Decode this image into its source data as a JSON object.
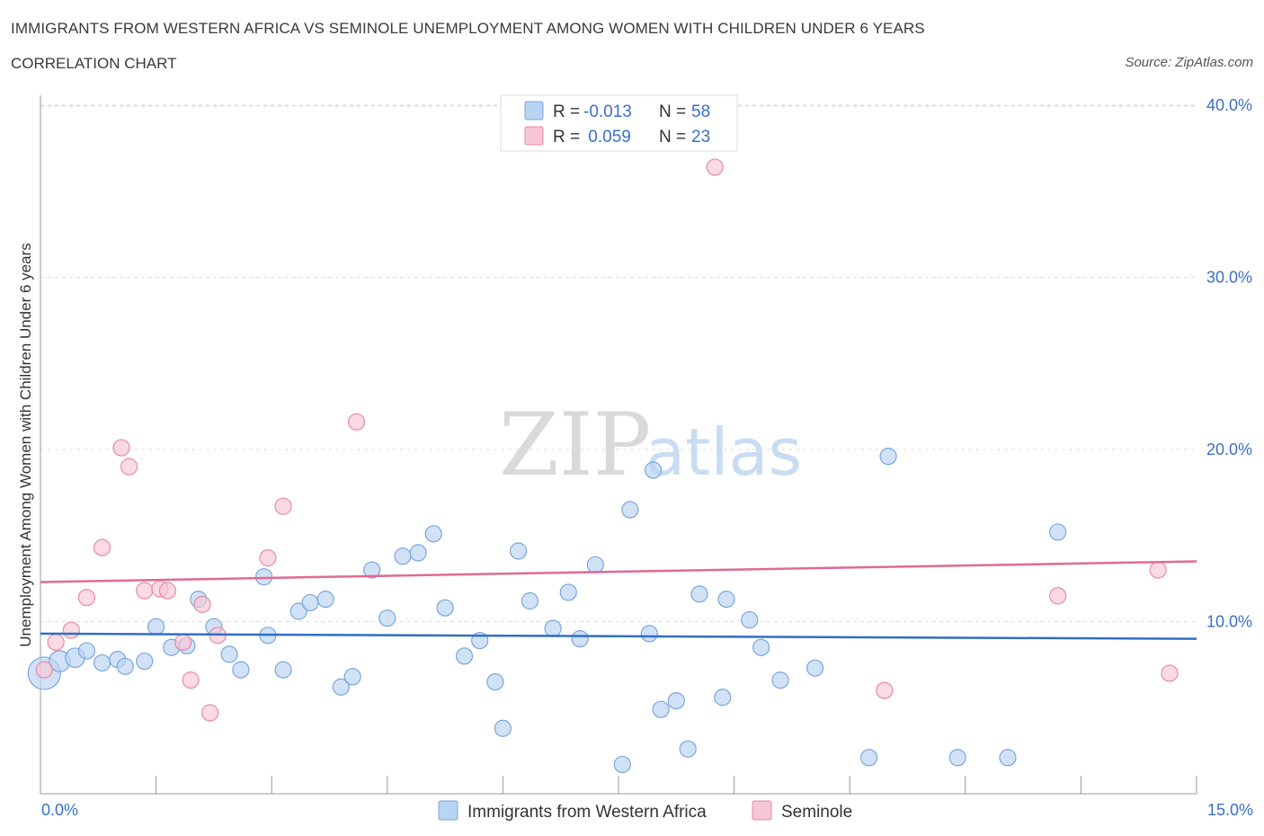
{
  "header": {
    "title": "IMMIGRANTS FROM WESTERN AFRICA VS SEMINOLE UNEMPLOYMENT AMONG WOMEN WITH CHILDREN UNDER 6 YEARS",
    "subtitle": "CORRELATION CHART",
    "source": "Source: ZipAtlas.com"
  },
  "colors": {
    "blue_fill": "#b9d3f2",
    "blue_stroke": "#7aa6dd",
    "blue_line": "#2f6fc4",
    "pink_fill": "#f7c6d4",
    "pink_stroke": "#e88aa8",
    "pink_line": "#e06a92",
    "accent_text": "#3a6fc9"
  },
  "legend": {
    "rows": [
      {
        "r_label": "R = ",
        "r_value": "-0.013",
        "n_label": "N = ",
        "n_value": "58"
      },
      {
        "r_label": "R = ",
        "r_value": " 0.059",
        "n_label": "N = ",
        "n_value": "23"
      }
    ]
  },
  "watermark": {
    "zip": "ZIP",
    "atlas": "atlas"
  },
  "chart_data": {
    "type": "scatter",
    "title": "IMMIGRANTS FROM WESTERN AFRICA VS SEMINOLE UNEMPLOYMENT AMONG WOMEN WITH CHILDREN UNDER 6 YEARS",
    "xlabel": "",
    "ylabel": "Unemployment Among Women with Children Under 6 years",
    "xlim": [
      0,
      15
    ],
    "ylim": [
      0,
      40
    ],
    "x_tick_labels": [
      "0.0%",
      "15.0%"
    ],
    "y_tick_labels": [
      "10.0%",
      "20.0%",
      "30.0%",
      "40.0%"
    ],
    "y_ticks": [
      10,
      20,
      30,
      40
    ],
    "series": [
      {
        "name": "Immigrants from Western Africa",
        "color": "blue",
        "trend": {
          "start": 9.3,
          "end": 9.0
        },
        "points": [
          [
            0.05,
            7.0,
            2.0
          ],
          [
            0.25,
            7.7,
            1.3
          ],
          [
            0.45,
            7.9,
            1.2
          ],
          [
            0.6,
            8.3,
            1.0
          ],
          [
            0.8,
            7.6,
            1.0
          ],
          [
            1.0,
            7.8,
            1.0
          ],
          [
            1.1,
            7.4,
            1.0
          ],
          [
            1.35,
            7.7,
            1.0
          ],
          [
            1.5,
            9.7,
            1.0
          ],
          [
            1.7,
            8.5,
            1.0
          ],
          [
            1.9,
            8.6,
            1.0
          ],
          [
            2.05,
            11.3,
            1.0
          ],
          [
            2.25,
            9.7,
            1.0
          ],
          [
            2.45,
            8.1,
            1.0
          ],
          [
            2.6,
            7.2,
            1.0
          ],
          [
            2.9,
            12.6,
            1.0
          ],
          [
            2.95,
            9.2,
            1.0
          ],
          [
            3.15,
            7.2,
            1.0
          ],
          [
            3.35,
            10.6,
            1.0
          ],
          [
            3.5,
            11.1,
            1.0
          ],
          [
            3.7,
            11.3,
            1.0
          ],
          [
            3.9,
            6.2,
            1.0
          ],
          [
            4.05,
            6.8,
            1.0
          ],
          [
            4.3,
            13.0,
            1.0
          ],
          [
            4.5,
            10.2,
            1.0
          ],
          [
            4.7,
            13.8,
            1.0
          ],
          [
            4.9,
            14.0,
            1.0
          ],
          [
            5.1,
            15.1,
            1.0
          ],
          [
            5.25,
            10.8,
            1.0
          ],
          [
            5.5,
            8.0,
            1.0
          ],
          [
            5.7,
            8.9,
            1.0
          ],
          [
            5.9,
            6.5,
            1.0
          ],
          [
            6.0,
            3.8,
            1.0
          ],
          [
            6.2,
            14.1,
            1.0
          ],
          [
            6.35,
            11.2,
            1.0
          ],
          [
            6.65,
            9.6,
            1.0
          ],
          [
            6.85,
            11.7,
            1.0
          ],
          [
            7.0,
            9.0,
            1.0
          ],
          [
            7.2,
            13.3,
            1.0
          ],
          [
            7.55,
            1.7,
            1.0
          ],
          [
            7.65,
            16.5,
            1.0
          ],
          [
            7.9,
            9.3,
            1.0
          ],
          [
            7.95,
            18.8,
            1.0
          ],
          [
            8.05,
            4.9,
            1.0
          ],
          [
            8.25,
            5.4,
            1.0
          ],
          [
            8.4,
            2.6,
            1.0
          ],
          [
            8.55,
            11.6,
            1.0
          ],
          [
            8.85,
            5.6,
            1.0
          ],
          [
            8.9,
            11.3,
            1.0
          ],
          [
            9.2,
            10.1,
            1.0
          ],
          [
            9.35,
            8.5,
            1.0
          ],
          [
            9.6,
            6.6,
            1.0
          ],
          [
            10.05,
            7.3,
            1.0
          ],
          [
            10.75,
            2.1,
            1.0
          ],
          [
            11.0,
            19.6,
            1.0
          ],
          [
            11.9,
            2.1,
            1.0
          ],
          [
            12.55,
            2.1,
            1.0
          ],
          [
            13.2,
            15.2,
            1.0
          ]
        ]
      },
      {
        "name": "Seminole",
        "color": "pink",
        "trend": {
          "start": 12.3,
          "end": 13.5
        },
        "points": [
          [
            0.05,
            7.2,
            1.0
          ],
          [
            0.2,
            8.8,
            1.0
          ],
          [
            0.4,
            9.5,
            1.0
          ],
          [
            0.6,
            11.4,
            1.0
          ],
          [
            0.8,
            14.3,
            1.0
          ],
          [
            1.05,
            20.1,
            1.0
          ],
          [
            1.15,
            19.0,
            1.0
          ],
          [
            1.35,
            11.8,
            1.0
          ],
          [
            1.55,
            11.9,
            1.0
          ],
          [
            1.65,
            11.8,
            1.0
          ],
          [
            1.85,
            8.8,
            1.0
          ],
          [
            1.95,
            6.6,
            1.0
          ],
          [
            2.1,
            11.0,
            1.0
          ],
          [
            2.2,
            4.7,
            1.0
          ],
          [
            2.3,
            9.2,
            1.0
          ],
          [
            2.95,
            13.7,
            1.0
          ],
          [
            3.15,
            16.7,
            1.0
          ],
          [
            4.1,
            21.6,
            1.0
          ],
          [
            8.75,
            36.4,
            1.0
          ],
          [
            10.95,
            6.0,
            1.0
          ],
          [
            13.2,
            11.5,
            1.0
          ],
          [
            14.5,
            13.0,
            1.0
          ],
          [
            14.65,
            7.0,
            1.0
          ]
        ]
      }
    ]
  }
}
